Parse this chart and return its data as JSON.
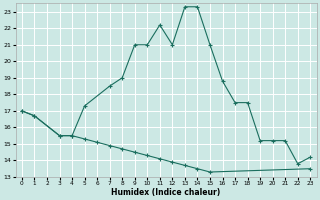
{
  "xlabel": "Humidex (Indice chaleur)",
  "background_color": "#cce8e4",
  "grid_color": "#ffffff",
  "line_color": "#1a6e5e",
  "xlim": [
    -0.5,
    23.5
  ],
  "ylim": [
    13,
    23.5
  ],
  "yticks": [
    13,
    14,
    15,
    16,
    17,
    18,
    19,
    20,
    21,
    22,
    23
  ],
  "xticks": [
    0,
    1,
    2,
    3,
    4,
    5,
    6,
    7,
    8,
    9,
    10,
    11,
    12,
    13,
    14,
    15,
    16,
    17,
    18,
    19,
    20,
    21,
    22,
    23
  ],
  "series1_x": [
    0,
    1,
    3,
    4,
    5,
    7,
    8,
    9,
    10,
    11,
    12,
    13,
    14,
    15,
    16,
    17,
    18,
    19,
    20,
    21,
    22,
    23
  ],
  "series1_y": [
    17.0,
    16.7,
    15.5,
    15.5,
    17.3,
    18.5,
    19.0,
    21.0,
    21.0,
    22.2,
    21.0,
    23.3,
    23.3,
    21.0,
    18.8,
    17.5,
    17.5,
    15.2,
    15.2,
    15.2,
    13.8,
    14.2
  ],
  "series2_x": [
    0,
    1,
    3,
    4,
    5,
    6,
    7,
    8,
    9,
    10,
    11,
    12,
    13,
    14,
    15,
    23
  ],
  "series2_y": [
    17.0,
    16.7,
    15.5,
    15.5,
    15.3,
    15.1,
    14.9,
    14.7,
    14.5,
    14.3,
    14.1,
    13.9,
    13.7,
    13.5,
    13.3,
    13.5
  ]
}
